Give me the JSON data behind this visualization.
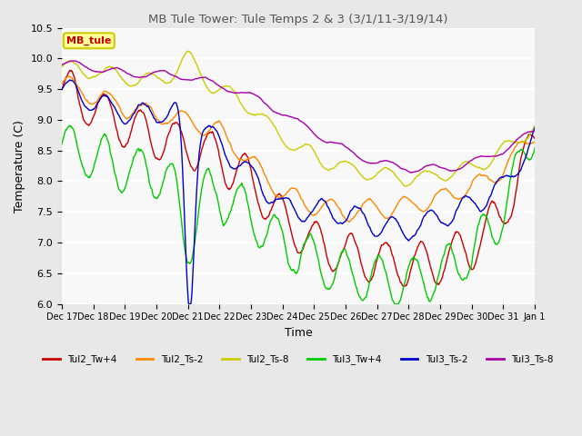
{
  "title": "MB Tule Tower: Tule Temps 2 & 3 (3/1/11-3/19/14)",
  "xlabel": "Time",
  "ylabel": "Temperature (C)",
  "ylim": [
    6.0,
    10.5
  ],
  "yticks": [
    6.0,
    6.5,
    7.0,
    7.5,
    8.0,
    8.5,
    9.0,
    9.5,
    10.0,
    10.5
  ],
  "xtick_labels": [
    "Dec 17",
    "Dec 18",
    "Dec 19",
    "Dec 20",
    "Dec 21",
    "Dec 22",
    "Dec 23",
    "Dec 24",
    "Dec 25",
    "Dec 26",
    "Dec 27",
    "Dec 28",
    "Dec 29",
    "Dec 30",
    "Dec 31",
    "Jan 1"
  ],
  "legend_labels": [
    "Tul2_Tw+4",
    "Tul2_Ts-2",
    "Tul2_Ts-8",
    "Tul3_Tw+4",
    "Tul3_Ts-2",
    "Tul3_Ts-8"
  ],
  "legend_colors": [
    "#cc0000",
    "#ff8800",
    "#cccc00",
    "#00cc00",
    "#0000cc",
    "#aa00aa"
  ],
  "line_width": 1.0,
  "background_color": "#e8e8e8",
  "plot_bg_color": "#f8f8f8",
  "grid_color": "#ffffff",
  "legend_box_text": "MB_tule",
  "n_points": 800
}
